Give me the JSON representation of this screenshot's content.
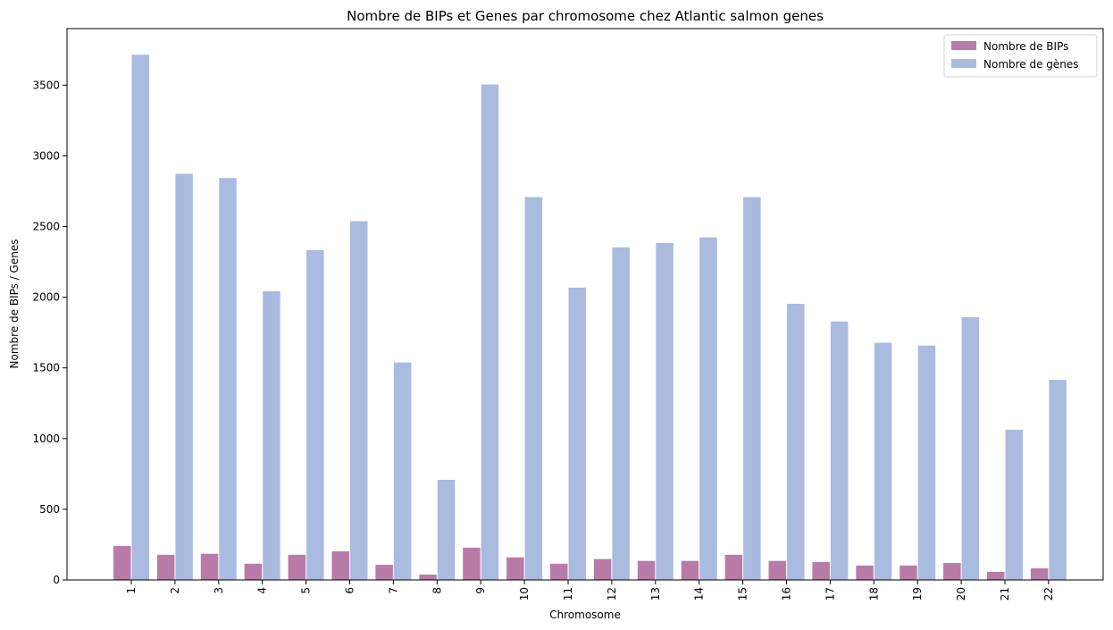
{
  "chart_data": {
    "type": "bar",
    "title": "Nombre de BIPs et Genes par chromosome chez Atlantic salmon genes",
    "xlabel": "Chromosome",
    "ylabel": "Nombre de BIPs / Genes",
    "ylim": [
      0,
      3900
    ],
    "yticks": [
      "0",
      "500",
      "1000",
      "1500",
      "2000",
      "2500",
      "3000",
      "3500"
    ],
    "grid": false,
    "legend_position": "top-right",
    "categories": [
      "1",
      "2",
      "3",
      "4",
      "5",
      "6",
      "7",
      "8",
      "9",
      "10",
      "11",
      "12",
      "13",
      "14",
      "15",
      "16",
      "17",
      "18",
      "19",
      "20",
      "21",
      "22"
    ],
    "series": [
      {
        "name": "Nombre de BIPs",
        "color": "#b87ba8",
        "values": [
          240,
          178,
          185,
          115,
          178,
          203,
          107,
          38,
          228,
          160,
          115,
          148,
          135,
          135,
          178,
          135,
          127,
          102,
          102,
          120,
          57,
          82
        ]
      },
      {
        "name": "Nombre de gènes",
        "color": "#aabbe0",
        "values": [
          3715,
          2873,
          2843,
          2043,
          2333,
          2538,
          1538,
          708,
          3505,
          2708,
          2068,
          2353,
          2383,
          2423,
          2708,
          1953,
          1828,
          1678,
          1658,
          1858,
          1063,
          1415
        ]
      }
    ]
  }
}
